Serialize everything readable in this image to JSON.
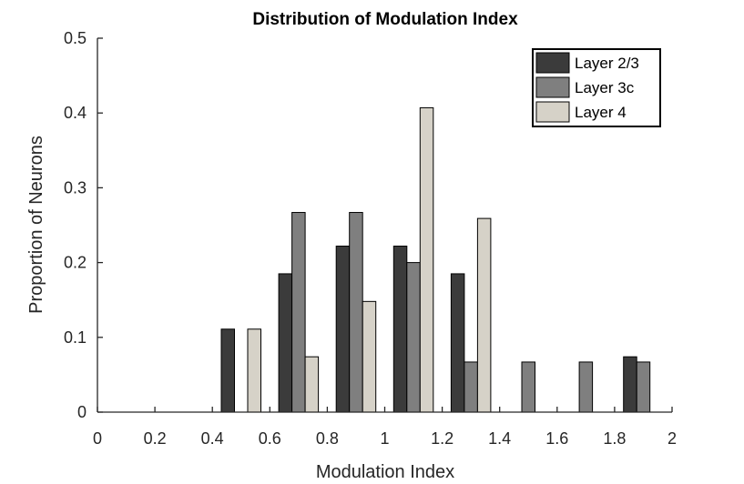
{
  "chart_data": {
    "type": "bar",
    "title": "Distribution of Modulation Index",
    "xlabel": "Modulation Index",
    "ylabel": "Proportion of Neurons",
    "xlim": [
      0,
      2
    ],
    "ylim": [
      0,
      0.5
    ],
    "xticks": [
      "0",
      "0.2",
      "0.4",
      "0.6",
      "0.8",
      "1",
      "1.2",
      "1.4",
      "1.6",
      "1.8",
      "2"
    ],
    "yticks": [
      "0",
      "0.1",
      "0.2",
      "0.3",
      "0.4",
      "0.5"
    ],
    "x": [
      0.1,
      0.3,
      0.5,
      0.7,
      0.9,
      1.1,
      1.3,
      1.5,
      1.7,
      1.9
    ],
    "legend_position": "top-right",
    "grid": false,
    "series": [
      {
        "name": "Layer 2/3",
        "color": "#3b3b3b",
        "values": [
          0,
          0,
          0.111,
          0.185,
          0.222,
          0.222,
          0.185,
          0,
          0,
          0.074
        ]
      },
      {
        "name": "Layer 3c",
        "color": "#7f7f7f",
        "values": [
          0,
          0,
          0,
          0.267,
          0.267,
          0.2,
          0.067,
          0.067,
          0.067,
          0.067
        ]
      },
      {
        "name": "Layer 4",
        "color": "#d6d2c8",
        "values": [
          0,
          0,
          0.111,
          0.074,
          0.148,
          0.407,
          0.259,
          0,
          0,
          0
        ]
      }
    ]
  }
}
